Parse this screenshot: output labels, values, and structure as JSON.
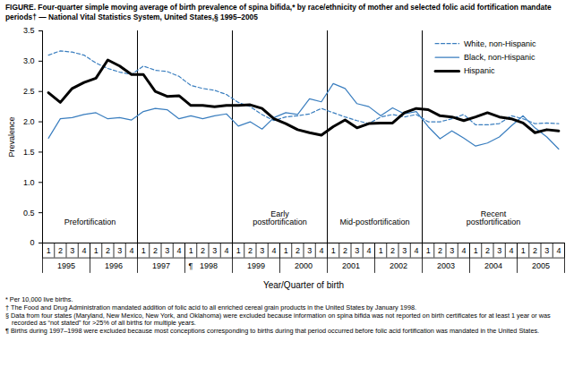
{
  "chart_data": {
    "type": "line",
    "title": "FIGURE. Four-quarter simple moving average of birth prevalence of spina bifida,* by race/ethnicity of mother and selected folic acid fortification mandate periods† — National Vital Statistics System, United States,§ 1995–2005",
    "x_label": "Year/Quarter of birth",
    "y_label": "Prevalence",
    "categories": [
      "1",
      "2",
      "3",
      "4",
      "1",
      "2",
      "3",
      "4",
      "1",
      "2",
      "3",
      "4",
      "1",
      "2",
      "3",
      "4",
      "1",
      "2",
      "3",
      "4",
      "1",
      "2",
      "3",
      "4",
      "1",
      "2",
      "3",
      "4",
      "1",
      "2",
      "3",
      "4",
      "1",
      "2",
      "3",
      "4",
      "1",
      "2",
      "3",
      "4",
      "1",
      "2",
      "3",
      "4"
    ],
    "years": [
      "1995",
      "1996",
      "1997",
      "1998",
      "1999",
      "2000",
      "2001",
      "2002",
      "2003",
      "2004",
      "2005"
    ],
    "annotations": [
      {
        "text": "¶",
        "year": "1998"
      }
    ],
    "periods": [
      {
        "label": "Prefortification",
        "first_year": "1995",
        "last_year": "1996"
      },
      {
        "label": null,
        "first_year": "1997",
        "last_year": "1998"
      },
      {
        "label": "Early\npostfortification",
        "first_year": "1999",
        "last_year": "2000"
      },
      {
        "label": "Mid-postfortification",
        "first_year": "2001",
        "last_year": "2002"
      },
      {
        "label": "Recent\npostfortification",
        "first_year": "2003",
        "last_year": "2005"
      }
    ],
    "series": [
      {
        "name": "White, non-Hispanic",
        "color": "#3a7ebf",
        "line_style": "dashed",
        "values": [
          3.1,
          3.17,
          3.15,
          3.1,
          2.97,
          2.88,
          2.82,
          2.78,
          2.92,
          2.85,
          2.83,
          2.75,
          2.6,
          2.55,
          2.52,
          2.45,
          2.32,
          2.25,
          2.12,
          2.02,
          2.08,
          2.1,
          2.13,
          2.22,
          2.15,
          2.08,
          2.02,
          1.97,
          2.08,
          2.12,
          2.08,
          2.12,
          2.0,
          2.0,
          2.05,
          2.12,
          1.95,
          1.95,
          1.97,
          2.1,
          2.05,
          1.97,
          1.98,
          1.97
        ]
      },
      {
        "name": "Black, non-Hispanic",
        "color": "#3a7ebf",
        "line_style": "solid",
        "values": [
          1.73,
          2.05,
          2.07,
          2.12,
          2.15,
          2.05,
          2.07,
          2.03,
          2.17,
          2.22,
          2.2,
          2.05,
          2.1,
          2.05,
          2.1,
          2.13,
          1.93,
          2.0,
          1.88,
          2.07,
          2.15,
          2.12,
          2.38,
          2.33,
          2.63,
          2.55,
          2.3,
          2.25,
          2.1,
          2.23,
          2.13,
          2.17,
          1.92,
          1.72,
          1.85,
          1.73,
          1.6,
          1.65,
          1.75,
          1.93,
          2.1,
          1.9,
          1.75,
          1.55
        ]
      },
      {
        "name": "Hispanic",
        "color": "#000000",
        "line_style": "thick",
        "values": [
          2.48,
          2.32,
          2.55,
          2.65,
          2.72,
          3.02,
          2.92,
          2.78,
          2.78,
          2.5,
          2.42,
          2.43,
          2.27,
          2.27,
          2.25,
          2.27,
          2.27,
          2.28,
          2.22,
          2.05,
          1.97,
          1.87,
          1.82,
          1.78,
          1.92,
          2.03,
          1.9,
          1.97,
          1.98,
          1.98,
          2.15,
          2.22,
          2.2,
          2.1,
          2.08,
          2.02,
          2.08,
          2.15,
          2.08,
          2.05,
          1.98,
          1.82,
          1.87,
          1.85
        ]
      }
    ],
    "ylim": [
      0,
      3.5
    ],
    "yticks": [
      0,
      0.5,
      {
        "value": 1,
        "label": "1.0"
      },
      1.5,
      {
        "value": 2,
        "label": "2.0"
      },
      2.5,
      {
        "value": 3,
        "label": "3.0"
      },
      3.5
    ],
    "grid": false,
    "legend": "top-right",
    "footnotes": [
      "* Per 10,000 live births.",
      "† The Food and Drug Administration mandated addition of folic acid to all enriched cereal grain products in the United States by January 1998.",
      "§ Data from four states (Maryland, New Mexico, New York, and Oklahoma) were excluded because information on spina bifida was not reported on birth certificates for at least 1 year or was recorded as “not stated” for >25% of all births for multiple years.",
      "¶ Births during 1997–1998 were excluded because most conceptions corresponding to births during that period occurred before folic acid fortification was mandated in the United States."
    ]
  }
}
